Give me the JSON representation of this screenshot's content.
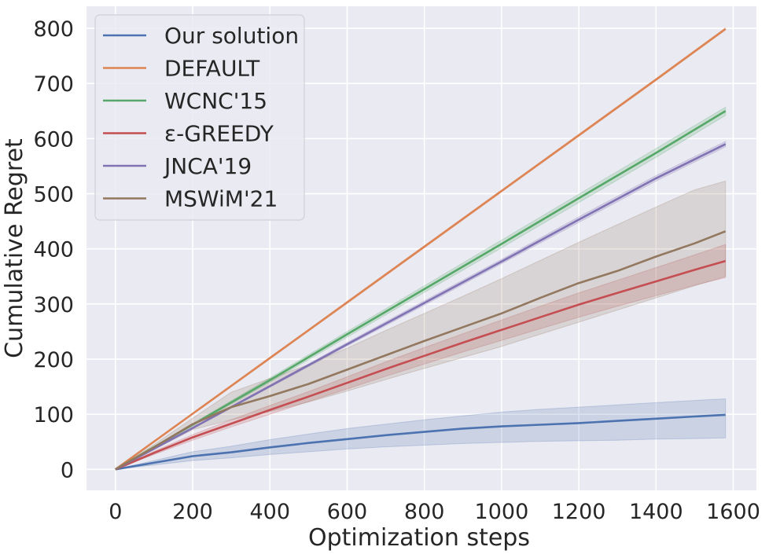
{
  "chart_data": {
    "type": "line",
    "title": "",
    "xlabel": "Optimization steps",
    "ylabel": "Cumulative Regret",
    "xlim": [
      -75,
      1660
    ],
    "ylim": [
      -38,
      840
    ],
    "xticks": [
      0,
      200,
      400,
      600,
      800,
      1000,
      1200,
      1400,
      1600
    ],
    "yticks": [
      0,
      100,
      200,
      300,
      400,
      500,
      600,
      700,
      800
    ],
    "grid": true,
    "legend_position": "top-left",
    "background": "#EAEAF2",
    "series": [
      {
        "name": "Our solution",
        "color": "#4C72B0",
        "x": [
          0,
          100,
          200,
          300,
          400,
          500,
          600,
          700,
          800,
          900,
          1000,
          1100,
          1200,
          1300,
          1400,
          1500,
          1580
        ],
        "y": [
          0,
          12,
          24,
          31,
          40,
          48,
          55,
          62,
          68,
          74,
          78,
          81,
          84,
          88,
          92,
          96,
          99
        ],
        "lower": [
          0,
          8,
          16,
          21,
          27,
          32,
          37,
          41,
          44,
          47,
          49,
          51,
          52,
          53,
          55,
          56,
          57
        ],
        "upper": [
          0,
          16,
          32,
          42,
          54,
          64,
          74,
          82,
          90,
          97,
          104,
          109,
          113,
          117,
          121,
          125,
          128
        ]
      },
      {
        "name": "DEFAULT",
        "color": "#DD8452",
        "x": [
          0,
          200,
          400,
          600,
          800,
          1000,
          1200,
          1400,
          1580
        ],
        "y": [
          0,
          101,
          202,
          303,
          404,
          505,
          606,
          707,
          799
        ],
        "lower": [
          0,
          100,
          200,
          301,
          402,
          503,
          604,
          705,
          797
        ],
        "upper": [
          0,
          102,
          203,
          305,
          406,
          507,
          608,
          709,
          801
        ]
      },
      {
        "name": "WCNC'15",
        "color": "#55A868",
        "x": [
          0,
          200,
          400,
          600,
          800,
          1000,
          1200,
          1400,
          1580
        ],
        "y": [
          0,
          81,
          162,
          245,
          327,
          409,
          492,
          574,
          650
        ],
        "lower": [
          0,
          79,
          158,
          240,
          321,
          402,
          484,
          566,
          642
        ],
        "upper": [
          0,
          83,
          166,
          250,
          333,
          416,
          499,
          582,
          657
        ]
      },
      {
        "name": "ε-GREEDY",
        "color": "#C44E52",
        "x": [
          0,
          100,
          200,
          300,
          400,
          500,
          600,
          700,
          800,
          900,
          1000,
          1100,
          1200,
          1300,
          1400,
          1500,
          1580
        ],
        "y": [
          0,
          30,
          58,
          83,
          108,
          132,
          157,
          182,
          206,
          230,
          253,
          276,
          299,
          320,
          341,
          362,
          378
        ],
        "lower": [
          0,
          27,
          53,
          77,
          100,
          123,
          146,
          169,
          191,
          213,
          234,
          255,
          276,
          296,
          315,
          334,
          348
        ],
        "upper": [
          0,
          33,
          63,
          90,
          116,
          141,
          168,
          195,
          221,
          246,
          271,
          296,
          320,
          343,
          366,
          389,
          408
        ]
      },
      {
        "name": "JNCA'19",
        "color": "#8172B3",
        "x": [
          0,
          200,
          400,
          600,
          800,
          1000,
          1200,
          1400,
          1580
        ],
        "y": [
          0,
          75,
          151,
          227,
          302,
          377,
          453,
          528,
          590
        ],
        "lower": [
          0,
          74,
          149,
          224,
          298,
          373,
          448,
          523,
          585
        ],
        "upper": [
          0,
          76,
          153,
          230,
          306,
          381,
          458,
          533,
          595
        ]
      },
      {
        "name": "MSWiM'21",
        "color": "#937860",
        "x": [
          0,
          100,
          200,
          300,
          400,
          500,
          600,
          700,
          800,
          900,
          1000,
          1100,
          1200,
          1300,
          1400,
          1500,
          1580
        ],
        "y": [
          0,
          40,
          82,
          113,
          133,
          155,
          181,
          207,
          233,
          258,
          283,
          311,
          338,
          360,
          386,
          410,
          432
        ],
        "lower": [
          0,
          36,
          72,
          90,
          105,
          122,
          142,
          163,
          183,
          203,
          223,
          245,
          267,
          289,
          311,
          333,
          350
        ],
        "upper": [
          0,
          45,
          93,
          140,
          165,
          190,
          220,
          252,
          283,
          314,
          346,
          379,
          412,
          444,
          476,
          507,
          523
        ]
      }
    ]
  }
}
